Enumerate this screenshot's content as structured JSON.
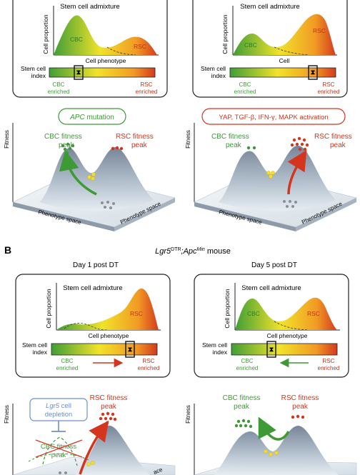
{
  "panel_a": {
    "left": {
      "mixture_title": "Stem cell admixture",
      "y_axis": "Cell proportion",
      "x_axis": "Cell phenotype",
      "cbc": "CBC",
      "rsc": "RSC",
      "index_label_1": "Stem cell",
      "index_label_2": "index",
      "cbc_end_1": "CBC",
      "cbc_end_2": "enriched",
      "rsc_end_1": "RSC",
      "rsc_end_2": "enriched",
      "trigger_italic": "APC",
      "trigger_rest": " mutation",
      "fitness": "Fitness",
      "cbc_peak_1": "CBC fitness",
      "cbc_peak_2": "peak",
      "rsc_peak_1": "RSC fitness",
      "rsc_peak_2": "peak",
      "phenotype_space_front": "Phenotype space",
      "phenotype_space_side": "Phenotype space"
    },
    "right": {
      "mixture_title": "Stem cell admixture",
      "y_axis": "Cell proportion",
      "x_axis": "Cell",
      "cbc": "CBC",
      "rsc": "RSC",
      "index_label_1": "Stem cell",
      "index_label_2": "index",
      "cbc_end_1": "CBC",
      "cbc_end_2": "enriched",
      "rsc_end_1": "RSC",
      "rsc_end_2": "enriched",
      "trigger": "YAP, TGF-β, IFN-γ, MAPK activation",
      "fitness": "Fitness",
      "cbc_peak_1": "CBC fitness",
      "cbc_peak_2": "peak",
      "rsc_peak_1": "RSC fitness",
      "rsc_peak_2": "peak",
      "phenotype_space_front": "Phenotype space",
      "phenotype_space_side": "Phenotype space"
    }
  },
  "panel_b": {
    "letter": "B",
    "title_lgr": "Lgr5",
    "title_dtr": "DTR",
    "title_sep": ";Apc",
    "title_min": "Min",
    "title_mouse": " mouse",
    "left": {
      "day": "Day 1 post DT",
      "mixture_title": "Stem cell admixture",
      "y_axis": "Cell proportion",
      "x_axis": "Cell phenotype",
      "rsc": "RSC",
      "index_label_1": "Stem cell",
      "index_label_2": "index",
      "cbc_end_1": "CBC",
      "cbc_end_2": "enriched",
      "rsc_end_1": "RSC",
      "rsc_end_2": "enriched",
      "fitness": "Fitness",
      "depletion_italic": "Lgr5",
      "depletion_rest": " cell",
      "depletion_2": "depletion",
      "cbc_peak_1": "CBC fitness",
      "cbc_peak_2": "peak",
      "rsc_peak_1": "RSC fitness",
      "rsc_peak_2": "peak",
      "phenotype_space_side": "ace"
    },
    "right": {
      "day": "Day 5 post DT",
      "mixture_title": "Stem cell admixture",
      "y_axis": "Cell proportion",
      "x_axis": "Cell phenotype",
      "cbc": "CBC",
      "rsc": "RSC",
      "index_label_1": "Stem cell",
      "index_label_2": "index",
      "cbc_end_1": "CBC",
      "cbc_end_2": "enriched",
      "rsc_end_1": "RSC",
      "rsc_end_2": "enriched",
      "fitness": "Fitness",
      "cbc_peak_1": "CBC fitness",
      "cbc_peak_2": "peak",
      "rsc_peak_1": "RSC fitness",
      "rsc_peak_2": "peak"
    }
  },
  "colors": {
    "green": "#3d9a35",
    "red": "#d4351c",
    "yellow": "#f3dd2a",
    "blue": "#6a8fd0",
    "peak_dark": "#7d8b9c",
    "peak_light": "#e6edf2"
  }
}
